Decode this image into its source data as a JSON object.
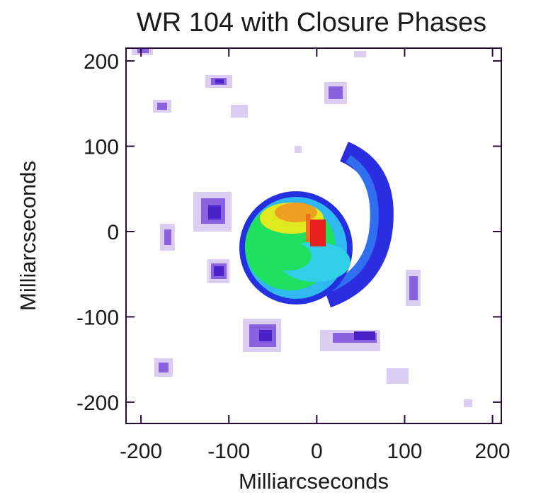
{
  "chart_data": {
    "type": "image",
    "title": "WR 104 with Closure Phases",
    "xlabel": "Milliarcseconds",
    "ylabel": "Milliarcseconds",
    "xlim": [
      -217,
      210
    ],
    "ylim": [
      -225,
      215
    ],
    "xticks": [
      -200,
      -100,
      0,
      100,
      200
    ],
    "yticks": [
      -200,
      -100,
      0,
      100,
      200
    ]
  }
}
